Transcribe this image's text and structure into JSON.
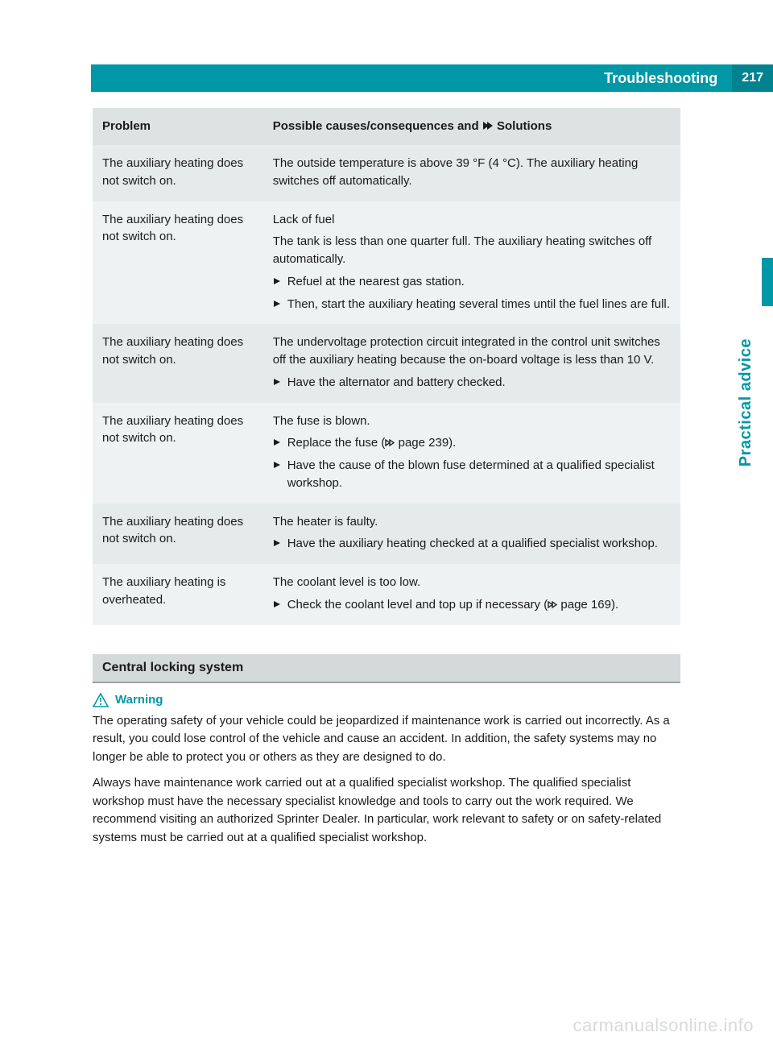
{
  "colors": {
    "teal": "#0097a7",
    "teal_dark": "#00838f",
    "header_row_bg": "#dde3e3",
    "row_bg": "#e5eaea",
    "row_alt_bg": "#eff2f2",
    "section_bar_bg": "#d4d9da",
    "section_bar_border": "#9aa3a4",
    "text": "#1a1a1a",
    "watermark": "#d7dadb",
    "white": "#ffffff"
  },
  "typography": {
    "body_fontsize": 15,
    "header_title_fontsize": 18,
    "pagenum_fontsize": 16,
    "side_tab_fontsize": 20,
    "section_bar_fontsize": 16
  },
  "header": {
    "title": "Troubleshooting",
    "page_number": "217"
  },
  "side_tab": "Practical advice",
  "table": {
    "col_problem_header": "Problem",
    "col_solutions_prefix": "Possible causes/consequences and ",
    "col_solutions_suffix": " Solutions",
    "rows": [
      {
        "problem": "The auxiliary heating does not switch on.",
        "cause": "The outside temperature is above 39 °F (4 °C). The auxiliary heating switches off automatically.",
        "actions": []
      },
      {
        "problem": "The auxiliary heating does not switch on.",
        "cause": "Lack of fuel",
        "extra": "The tank is less than one quarter full. The auxiliary heating switches off automatically.",
        "actions": [
          "Refuel at the nearest gas station.",
          "Then, start the auxiliary heating several times until the fuel lines are full."
        ]
      },
      {
        "problem": "The auxiliary heating does not switch on.",
        "cause": "The undervoltage protection circuit integrated in the control unit switches off the auxiliary heating because the on-board voltage is less than 10 V.",
        "actions": [
          "Have the alternator and battery checked."
        ]
      },
      {
        "problem": "The auxiliary heating does not switch on.",
        "cause": "The fuse is blown.",
        "actions": [
          {
            "text_before": "Replace the fuse (",
            "xref": "page 239",
            "text_after": ")."
          },
          "Have the cause of the blown fuse determined at a qualified specialist workshop."
        ]
      },
      {
        "problem": "The auxiliary heating does not switch on.",
        "cause": "The heater is faulty.",
        "actions": [
          "Have the auxiliary heating checked at a qualified specialist workshop."
        ]
      },
      {
        "problem": "The auxiliary heating is overheated.",
        "cause": "The coolant level is too low.",
        "actions": [
          {
            "text_before": "Check the coolant level and top up if necessary (",
            "xref": "page 169",
            "text_after": ")."
          }
        ]
      }
    ]
  },
  "section": {
    "title": "Central locking system"
  },
  "warning": {
    "label": "Warning",
    "paragraphs": [
      "The operating safety of your vehicle could be jeopardized if maintenance work is carried out incorrectly. As a result, you could lose control of the vehicle and cause an accident. In addition, the safety systems may no longer be able to protect you or others as they are designed to do.",
      "Always have maintenance work carried out at a qualified specialist workshop. The qualified specialist workshop must have the necessary specialist knowledge and tools to carry out the work required. We recommend visiting an authorized Sprinter Dealer. In particular, work relevant to safety or on safety-related systems must be carried out at a qualified specialist workshop."
    ]
  },
  "watermark": "carmanualsonline.info"
}
